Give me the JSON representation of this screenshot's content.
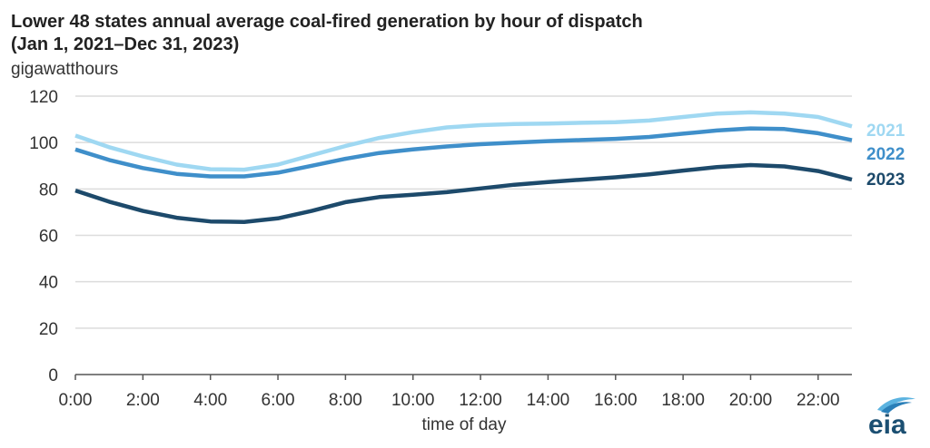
{
  "header": {
    "title_line1": "Lower 48 states annual average coal-fired generation by hour of dispatch",
    "title_line2": "(Jan 1, 2021–Dec 31, 2023)",
    "unit_label": "gigawatthours"
  },
  "logo": {
    "text": "eia",
    "color": "#1b4f72"
  },
  "colors": {
    "s2021": "#9fd8f2",
    "s2022": "#3f8fca",
    "s2023": "#1d4a6b",
    "grid": "#dcdcdc",
    "axis": "#555555"
  },
  "chart_data": {
    "type": "line",
    "title": "Lower 48 states annual average coal-fired generation by hour of dispatch (Jan 1, 2021–Dec 31, 2023)",
    "xlabel": "time of day",
    "ylabel": "gigawatthours",
    "ylim": [
      0,
      120
    ],
    "yticks": [
      0,
      20,
      40,
      60,
      80,
      100,
      120
    ],
    "grid": true,
    "legend": "right (labels at line ends)",
    "x": [
      "0:00",
      "1:00",
      "2:00",
      "3:00",
      "4:00",
      "5:00",
      "6:00",
      "7:00",
      "8:00",
      "9:00",
      "10:00",
      "11:00",
      "12:00",
      "13:00",
      "14:00",
      "15:00",
      "16:00",
      "17:00",
      "18:00",
      "19:00",
      "20:00",
      "21:00",
      "22:00",
      "23:00"
    ],
    "xticks": [
      "0:00",
      "2:00",
      "4:00",
      "6:00",
      "8:00",
      "10:00",
      "12:00",
      "14:00",
      "16:00",
      "18:00",
      "20:00",
      "22:00"
    ],
    "series": [
      {
        "name": "2021",
        "values": [
          103,
          98,
          94,
          90.5,
          88.5,
          88.3,
          90.5,
          94.5,
          98.5,
          102,
          104.5,
          106.5,
          107.5,
          108,
          108.2,
          108.5,
          108.8,
          109.5,
          111,
          112.5,
          113,
          112.5,
          111,
          107
        ]
      },
      {
        "name": "2022",
        "values": [
          97,
          92.5,
          89,
          86.5,
          85.4,
          85.4,
          87,
          90,
          93,
          95.5,
          97,
          98.3,
          99.3,
          100,
          100.6,
          101.1,
          101.6,
          102.4,
          103.8,
          105.2,
          106.1,
          105.8,
          104,
          101
        ]
      },
      {
        "name": "2023",
        "values": [
          79.3,
          74.5,
          70.5,
          67.6,
          66,
          65.8,
          67.3,
          70.5,
          74.3,
          76.5,
          77.5,
          78.6,
          80.2,
          81.8,
          83,
          84,
          85,
          86.3,
          87.9,
          89.4,
          90.3,
          89.7,
          87.7,
          84
        ]
      }
    ]
  }
}
